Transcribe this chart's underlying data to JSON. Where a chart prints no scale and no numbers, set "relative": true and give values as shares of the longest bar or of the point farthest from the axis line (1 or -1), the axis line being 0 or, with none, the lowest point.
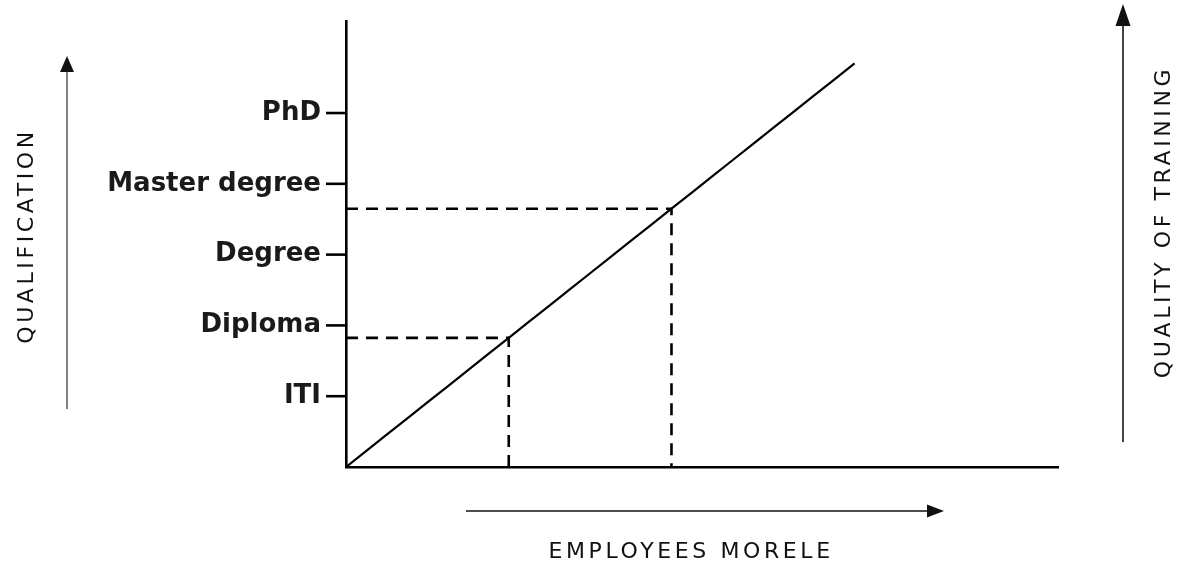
{
  "chart_data": {
    "type": "line",
    "xlabel": "EMPLOYEES MORELE",
    "y2label": "QUALITY OF TRAINING",
    "annotations": [
      "QUALIFICATION",
      "PhD",
      "Master degree",
      "Degree",
      "Diploma",
      "ITI"
    ],
    "categories": [
      null,
      null,
      null,
      null,
      null,
      null,
      null,
      null,
      null,
      null,
      null,
      null,
      null,
      null,
      null,
      null,
      null,
      null,
      null,
      null,
      null,
      null,
      null,
      null,
      null,
      null,
      null,
      null,
      null,
      null,
      null,
      null,
      null,
      null,
      null,
      null
    ],
    "series": [
      {
        "type": "line",
        "color": "#000000",
        "line_style": "solid",
        "values": [
          0,
          0.04,
          0.08,
          0.12,
          0.16,
          0.2,
          0.24,
          0.28,
          0.32,
          0.36,
          0.4,
          0.44,
          0.48,
          0.52,
          0.56,
          0.6,
          0.64,
          0.68,
          0.72,
          0.76,
          0.8,
          0.84,
          0.88,
          0.92,
          0.96,
          1,
          null,
          null,
          null,
          null,
          null,
          null,
          null,
          null,
          null,
          null
        ]
      },
      {
        "type": "step",
        "color": "#000000",
        "line_style": "dashed",
        "values": [
          0.32,
          0.32,
          0.32,
          0.32,
          0.32,
          0.32,
          0.32,
          0.32,
          0,
          null,
          null,
          null,
          null,
          null,
          null,
          null,
          null,
          null,
          null,
          null,
          null,
          null,
          null,
          null,
          null,
          null,
          null,
          null,
          null,
          null,
          null,
          null,
          null,
          null,
          null,
          null
        ]
      },
      {
        "type": "step",
        "color": "#000000",
        "line_style": "dashed",
        "values": [
          0.64,
          0.64,
          0.64,
          0.64,
          0.64,
          0.64,
          0.64,
          0.64,
          0.64,
          0.64,
          0.64,
          0.64,
          0.64,
          0.64,
          0.64,
          0.64,
          0,
          null,
          null,
          null,
          null,
          null,
          null,
          null,
          null,
          null,
          null,
          null,
          null,
          null,
          null,
          null,
          null,
          null,
          null,
          null
        ]
      }
    ],
    "relative": true,
    "marker": "none"
  }
}
